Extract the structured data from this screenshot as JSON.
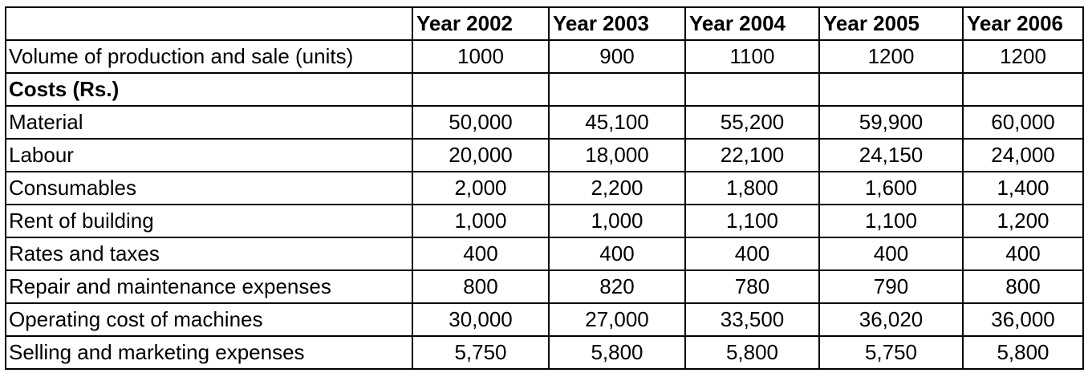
{
  "table": {
    "corner": "",
    "years": [
      "Year 2002",
      "Year 2003",
      "Year 2004",
      "Year 2005",
      "Year 2006"
    ],
    "rows": [
      {
        "label": "Volume of production and sale (units)",
        "values": [
          "1000",
          "900",
          "1100",
          "1200",
          "1200"
        ]
      },
      {
        "label": "Costs (Rs.)",
        "values": [
          "",
          "",
          "",
          "",
          ""
        ]
      },
      {
        "label": "Material",
        "values": [
          "50,000",
          "45,100",
          "55,200",
          "59,900",
          "60,000"
        ]
      },
      {
        "label": "Labour",
        "values": [
          "20,000",
          "18,000",
          "22,100",
          "24,150",
          "24,000"
        ]
      },
      {
        "label": "Consumables",
        "values": [
          "2,000",
          "2,200",
          "1,800",
          "1,600",
          "1,400"
        ]
      },
      {
        "label": "Rent of building",
        "values": [
          "1,000",
          "1,000",
          "1,100",
          "1,100",
          "1,200"
        ]
      },
      {
        "label": "Rates and taxes",
        "values": [
          "400",
          "400",
          "400",
          "400",
          "400"
        ]
      },
      {
        "label": "Repair and maintenance expenses",
        "values": [
          "800",
          "820",
          "780",
          "790",
          "800"
        ]
      },
      {
        "label": "Operating cost of machines",
        "values": [
          "30,000",
          "27,000",
          "33,500",
          "36,020",
          "36,000"
        ]
      },
      {
        "label": "Selling and marketing expenses",
        "values": [
          "5,750",
          "5,800",
          "5,800",
          "5,750",
          "5,800"
        ]
      }
    ]
  }
}
